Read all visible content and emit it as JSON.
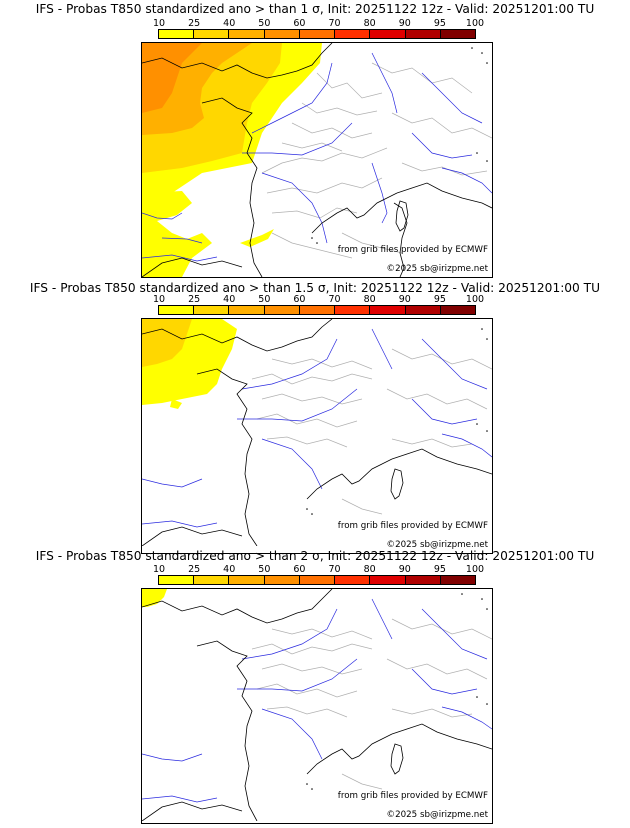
{
  "legend": {
    "ticks": [
      "10",
      "25",
      "40",
      "50",
      "60",
      "70",
      "80",
      "90",
      "95",
      "100"
    ],
    "colors": [
      "#ffff00",
      "#ffd700",
      "#ffb000",
      "#ff9000",
      "#ff7000",
      "#ff3000",
      "#e00000",
      "#b00000",
      "#800000"
    ]
  },
  "panels": [
    {
      "title": "IFS - Probas T850  standardized ano > than 1 σ, Init: 20251122 12z - Valid: 20251201:00 TU",
      "credit_source": "from grib files provided by ECMWF",
      "credit_copyright": "©2025 sb@irizpme.net"
    },
    {
      "title": "IFS - Probas T850  standardized ano > than 1.5 σ, Init: 20251122 12z - Valid: 20251201:00 TU",
      "credit_source": "from grib files provided by ECMWF",
      "credit_copyright": "©2025 sb@irizpme.net"
    },
    {
      "title": "IFS - Probas T850  standardized ano > than 2 σ, Init: 20251122 12z - Valid: 20251201:00 TU",
      "credit_source": "from grib files provided by ECMWF",
      "credit_copyright": "©2025 sb@irizpme.net"
    }
  ]
}
